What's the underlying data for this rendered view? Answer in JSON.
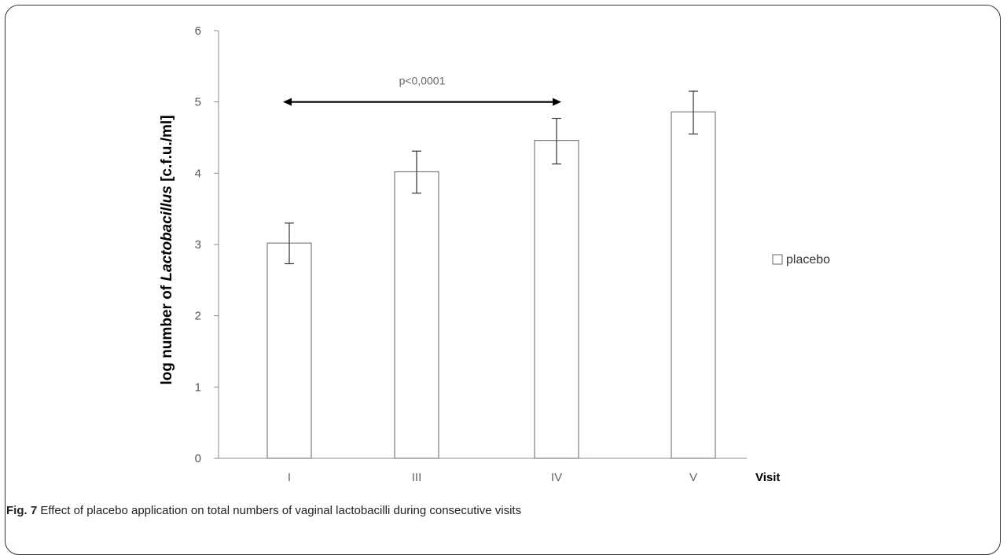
{
  "figure": {
    "label": "Fig. 7",
    "caption": " Effect of placebo application on total numbers of vaginal lactobacilli during consecutive visits"
  },
  "chart_data": {
    "type": "bar",
    "categories": [
      "I",
      "III",
      "IV",
      "V"
    ],
    "series": [
      {
        "name": "placebo",
        "values": [
          3.02,
          4.02,
          4.46,
          4.86
        ],
        "error_low": [
          2.73,
          3.72,
          4.13,
          4.55
        ],
        "error_high": [
          3.3,
          4.31,
          4.77,
          5.15
        ],
        "fill": "#ffffff",
        "stroke": "#7f7f7f"
      }
    ],
    "ylabel_prefix": "log number of ",
    "ylabel_italic": "Lactobacillus",
    "ylabel_suffix": " [c.f.u./ml]",
    "xlabel": "Visit",
    "ylim": [
      0,
      6
    ],
    "yticks": [
      "0",
      "1",
      "2",
      "3",
      "4",
      "5",
      "6"
    ],
    "grid": false,
    "legend_position": "right",
    "annotation": {
      "text": "p<0,0001",
      "from_category": "I",
      "to_category": "IV",
      "y": 5.0
    }
  }
}
